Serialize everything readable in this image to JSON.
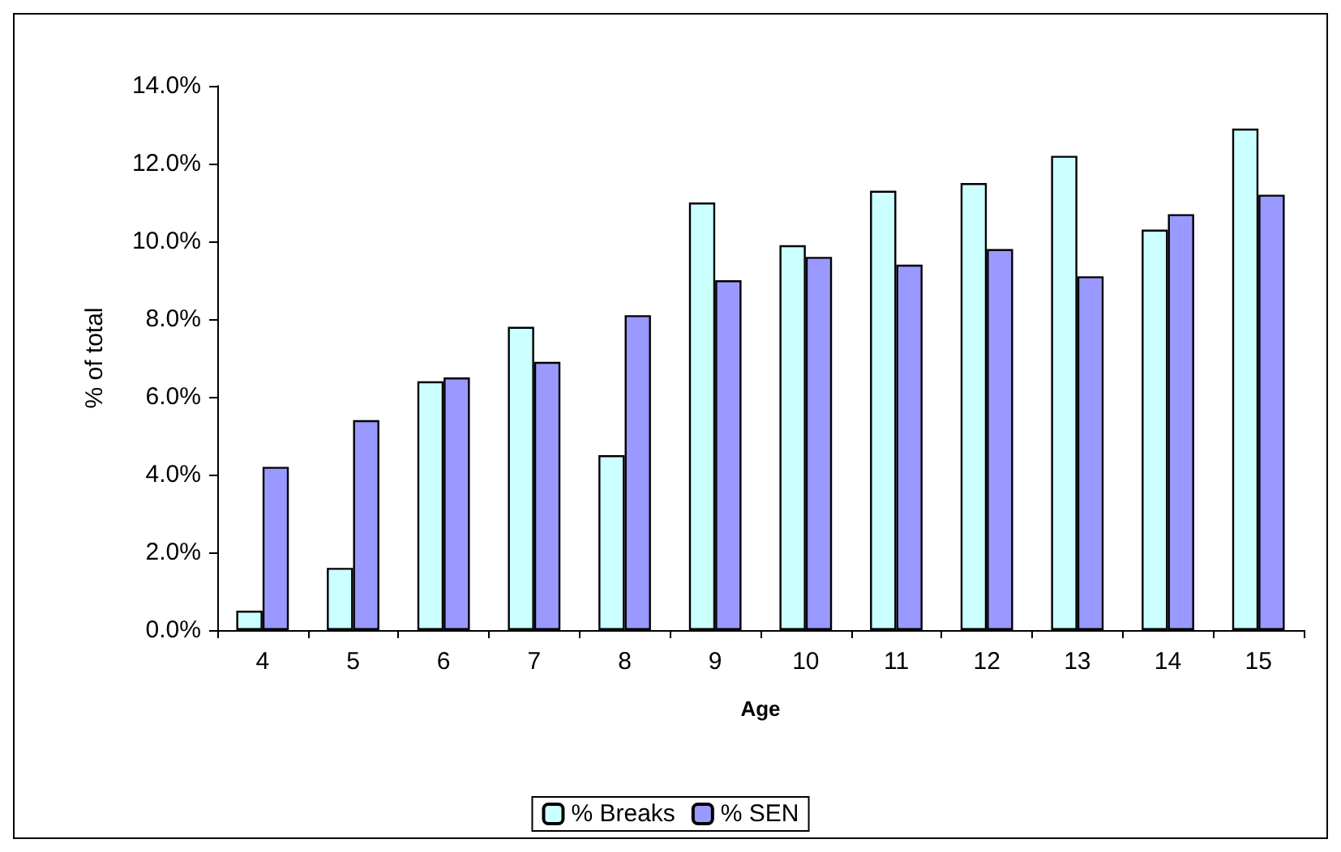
{
  "chart_data": {
    "type": "bar",
    "xlabel": "Age",
    "ylabel": "% of total",
    "categories": [
      "4",
      "5",
      "6",
      "7",
      "8",
      "9",
      "10",
      "11",
      "12",
      "13",
      "14",
      "15"
    ],
    "series": [
      {
        "name": "% Breaks",
        "color": "#ccffff",
        "values": [
          0.5,
          1.6,
          6.4,
          7.8,
          4.5,
          11.0,
          9.9,
          11.3,
          11.5,
          12.2,
          10.3,
          12.9
        ]
      },
      {
        "name": "% SEN",
        "color": "#9999ff",
        "values": [
          4.2,
          5.4,
          6.5,
          6.9,
          8.1,
          9.0,
          9.6,
          9.4,
          9.8,
          9.1,
          10.7,
          11.2
        ]
      }
    ],
    "ylim": [
      0,
      14
    ],
    "yticks": [
      {
        "value": 0,
        "label": "0.0%"
      },
      {
        "value": 2,
        "label": "2.0%"
      },
      {
        "value": 4,
        "label": "4.0%"
      },
      {
        "value": 6,
        "label": "6.0%"
      },
      {
        "value": 8,
        "label": "8.0%"
      },
      {
        "value": 10,
        "label": "10.0%"
      },
      {
        "value": 12,
        "label": "12.0%"
      },
      {
        "value": 14,
        "label": "14.0%"
      }
    ],
    "grid": false,
    "legend": "bottom"
  }
}
